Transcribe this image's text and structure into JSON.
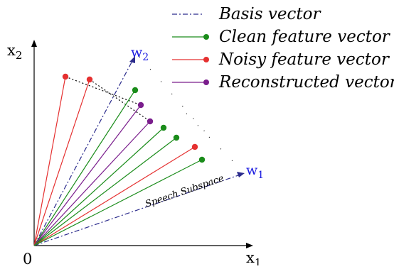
{
  "legend": [
    {
      "label": "Basis vector",
      "color": "#2b2b8c",
      "style": "dash-dot",
      "marker": false
    },
    {
      "label": "Clean feature vector",
      "color": "#1a8c1a",
      "style": "solid",
      "marker": true
    },
    {
      "label": "Noisy feature vector",
      "color": "#e53030",
      "style": "solid",
      "marker": true
    },
    {
      "label": "Reconstructed vector",
      "color": "#7a1d8c",
      "style": "solid",
      "marker": true
    }
  ],
  "axes": {
    "x_label": "x",
    "x_sub": "1",
    "y_label": "x",
    "y_sub": "2",
    "origin": "0"
  },
  "basis": {
    "w1_label": "w",
    "w1_sub": "1",
    "w2_label": "w",
    "w2_sub": "2",
    "color": "#2b2b8c",
    "label_color": "#1a1ae0"
  },
  "subspace_label": "Speech Subspace",
  "vectors": {
    "clean_color": "#1a8c1a",
    "noisy_color": "#e53030",
    "recon_color": "#7a1d8c"
  }
}
